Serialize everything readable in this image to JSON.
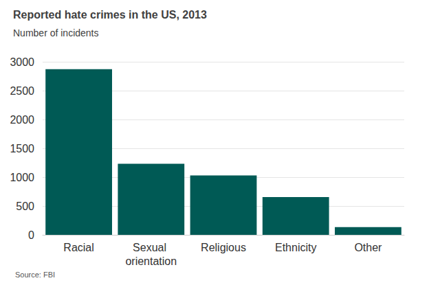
{
  "chart_data": {
    "type": "bar",
    "title": "Reported hate crimes in the US, 2013",
    "subtitle": "Number of incidents",
    "source": "Source: FBI",
    "categories": [
      "Racial",
      "Sexual orientation",
      "Religious",
      "Ethnicity",
      "Other"
    ],
    "values": [
      2871,
      1233,
      1031,
      655,
      135
    ],
    "color": "#005a55",
    "ylim": [
      0,
      3000
    ],
    "yticks": [
      0,
      500,
      1000,
      1500,
      2000,
      2500,
      3000
    ],
    "grid": true
  }
}
